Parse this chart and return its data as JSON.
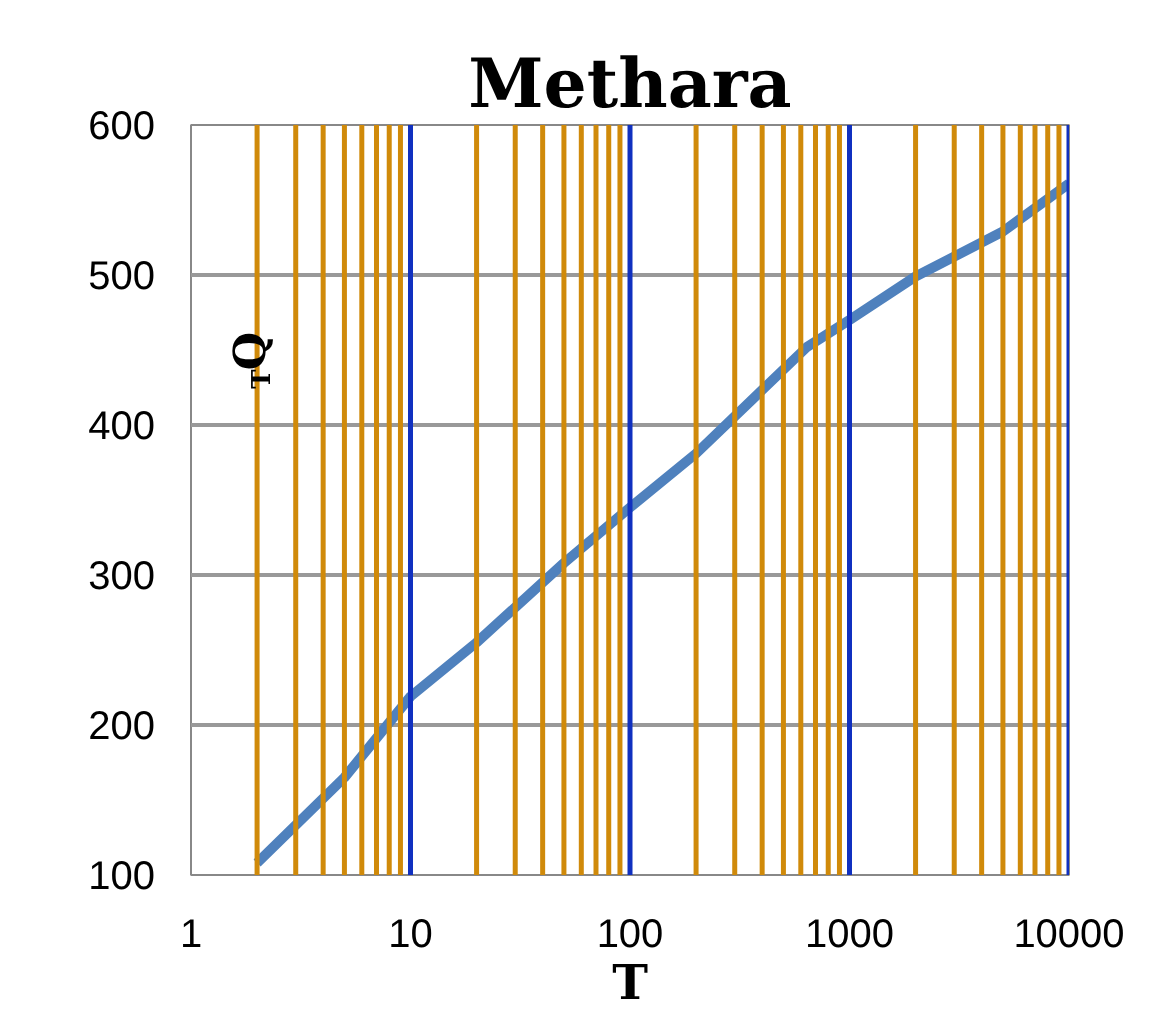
{
  "chart_data": {
    "type": "line",
    "title": "Methara",
    "xlabel": "T",
    "ylabel": "Q$_{T}$",
    "x": [
      2,
      5,
      10,
      20,
      50,
      100,
      200,
      640,
      1000,
      2000,
      5000,
      10000
    ],
    "series": [
      {
        "color": "#4f81bd",
        "values": [
          108,
          165,
          219,
          255,
          308,
          345,
          381,
          452,
          470,
          499,
          529,
          561
        ]
      }
    ],
    "xlim": [
      1,
      10000
    ],
    "xticks": [
      1,
      {
        "value": 2,
        "label": null
      },
      {
        "value": 3,
        "label": null
      },
      {
        "value": 4,
        "label": null
      },
      {
        "value": 5,
        "label": null
      },
      {
        "value": 6,
        "label": null
      },
      {
        "value": 7,
        "label": null
      },
      {
        "value": 8,
        "label": null
      },
      {
        "value": 9,
        "label": null
      },
      10,
      {
        "value": 20,
        "label": null
      },
      {
        "value": 30,
        "label": null
      },
      {
        "value": 40,
        "label": null
      },
      {
        "value": 50,
        "label": null
      },
      {
        "value": 60,
        "label": null
      },
      {
        "value": 70,
        "label": null
      },
      {
        "value": 80,
        "label": null
      },
      {
        "value": 90,
        "label": null
      },
      100,
      {
        "value": 200,
        "label": null
      },
      {
        "value": 300,
        "label": null
      },
      {
        "value": 400,
        "label": null
      },
      {
        "value": 500,
        "label": null
      },
      {
        "value": 600,
        "label": null
      },
      {
        "value": 700,
        "label": null
      },
      {
        "value": 800,
        "label": null
      },
      {
        "value": 900,
        "label": null
      },
      1000,
      {
        "value": 2000,
        "label": null
      },
      {
        "value": 3000,
        "label": null
      },
      {
        "value": 4000,
        "label": null
      },
      {
        "value": 5000,
        "label": null
      },
      {
        "value": 6000,
        "label": null
      },
      {
        "value": 7000,
        "label": null
      },
      {
        "value": 8000,
        "label": null
      },
      {
        "value": 9000,
        "label": null
      },
      10000
    ],
    "ylim": [
      100,
      600
    ],
    "yticks": [
      100,
      200,
      300,
      400,
      500,
      600
    ],
    "log": "x",
    "grid": true,
    "marker": "none",
    "line_style": "solid"
  }
}
